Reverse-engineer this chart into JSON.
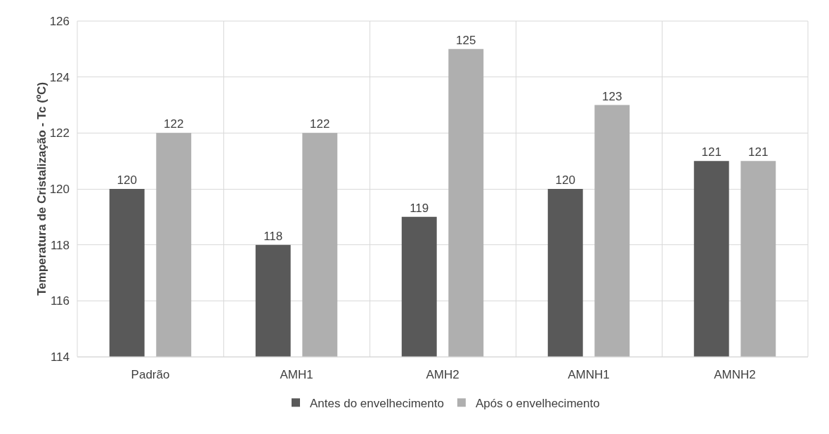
{
  "chart_data": {
    "type": "bar",
    "ylabel": "Temperatura de Cristalização - Tc (ºC)",
    "categories": [
      "Padrão",
      "AMH1",
      "AMH2",
      "AMNH1",
      "AMNH2"
    ],
    "series": [
      {
        "name": "Antes do envelhecimento",
        "color": "#595959",
        "values": [
          120,
          118,
          119,
          120,
          121
        ]
      },
      {
        "name": "Após o envelhecimento",
        "color": "#afafaf",
        "values": [
          122,
          122,
          125,
          123,
          121
        ]
      }
    ],
    "ylim": [
      114,
      126
    ],
    "yticks": [
      114,
      116,
      118,
      120,
      122,
      124,
      126
    ],
    "grid": true,
    "legend": "bottom",
    "data_labels": true
  }
}
